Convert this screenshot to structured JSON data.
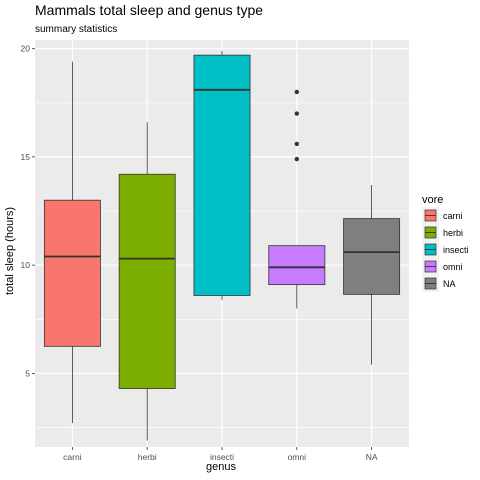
{
  "chart_data": {
    "type": "boxplot",
    "title": "Mammals total sleep and genus type",
    "subtitle": "summary statistics",
    "xlabel": "genus",
    "ylabel": "total sleep (hours)",
    "ylim": [
      1.6,
      20.4
    ],
    "yticks": [
      5,
      10,
      15,
      20
    ],
    "grid": true,
    "legend": {
      "title": "vore",
      "position": "right",
      "items": [
        {
          "label": "carni",
          "color": "#F8766D"
        },
        {
          "label": "herbi",
          "color": "#7CAE00"
        },
        {
          "label": "insecti",
          "color": "#00BFC4"
        },
        {
          "label": "omni",
          "color": "#C77CFF"
        },
        {
          "label": "NA",
          "color": "#7F7F7F"
        }
      ]
    },
    "categories": [
      "carni",
      "herbi",
      "insecti",
      "omni",
      "NA"
    ],
    "boxes": [
      {
        "category": "carni",
        "min": 2.7,
        "q1": 6.25,
        "median": 10.4,
        "q3": 13.0,
        "max": 19.4,
        "outliers": [],
        "color": "#F8766D"
      },
      {
        "category": "herbi",
        "min": 1.9,
        "q1": 4.3,
        "median": 10.3,
        "q3": 14.2,
        "max": 16.6,
        "outliers": [],
        "color": "#7CAE00"
      },
      {
        "category": "insecti",
        "min": 8.4,
        "q1": 8.6,
        "median": 18.1,
        "q3": 19.7,
        "max": 19.9,
        "outliers": [],
        "color": "#00BFC4"
      },
      {
        "category": "omni",
        "min": 8.0,
        "q1": 9.1,
        "median": 9.9,
        "q3": 10.9,
        "max": 10.9,
        "outliers": [
          14.9,
          15.6,
          17.0,
          18.0
        ],
        "color": "#C77CFF"
      },
      {
        "category": "NA",
        "min": 5.4,
        "q1": 8.65,
        "median": 10.6,
        "q3": 12.15,
        "max": 13.7,
        "outliers": [],
        "color": "#7F7F7F"
      }
    ]
  }
}
